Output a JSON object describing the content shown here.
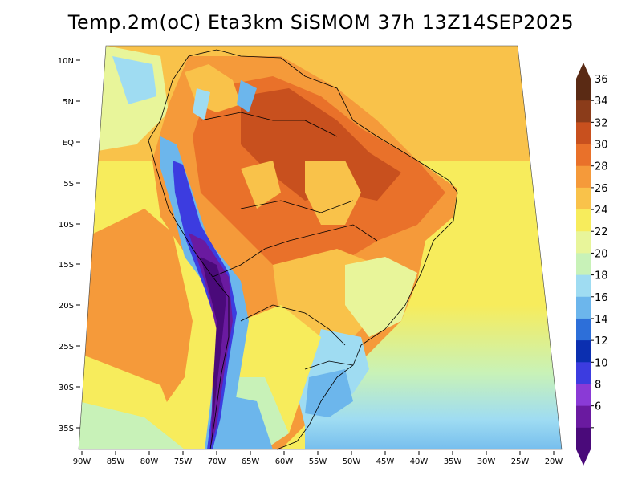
{
  "title": "Temp.2m(oC) Eta3km SiSMOM 37h 13Z14SEP2025",
  "lat_labels": [
    "10N",
    "5N",
    "EQ",
    "5S",
    "10S",
    "15S",
    "20S",
    "25S",
    "30S",
    "35S"
  ],
  "lon_labels": [
    "90W",
    "85W",
    "80W",
    "75W",
    "70W",
    "65W",
    "60W",
    "55W",
    "50W",
    "45W",
    "40W",
    "35W",
    "30W",
    "25W",
    "20W"
  ],
  "colorbar": {
    "labels": [
      "36",
      "34",
      "32",
      "30",
      "28",
      "26",
      "24",
      "22",
      "20",
      "18",
      "16",
      "14",
      "12",
      "10",
      "8",
      "6"
    ],
    "colors": [
      "#5a2a14",
      "#8b3c1a",
      "#c8501e",
      "#e9712a",
      "#f59a3a",
      "#f9c24a",
      "#f7ec5c",
      "#e8f59a",
      "#c8f2b8",
      "#9fdcf2",
      "#6cb6ec",
      "#2d6fd9",
      "#0b2fb0",
      "#3c3ce0",
      "#8a3ad6",
      "#6a1aa0",
      "#4a0a7a"
    ]
  }
}
